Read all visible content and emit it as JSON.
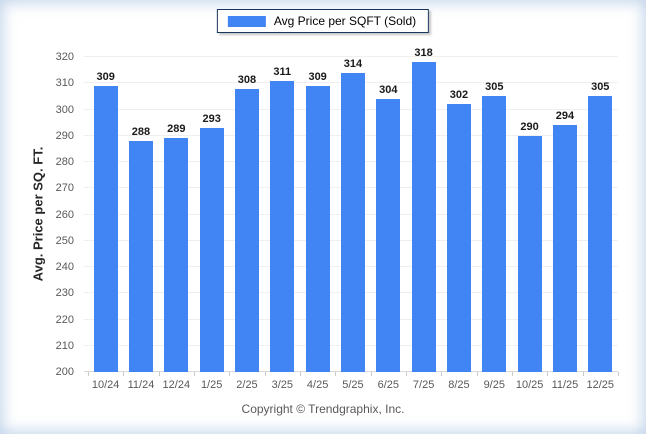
{
  "page": {
    "footer": "Copyright © Trendgraphix, Inc."
  },
  "legend": {
    "label": "Avg Price per SQFT (Sold)",
    "swatch_color": "#4184f3"
  },
  "chart_data": {
    "type": "bar",
    "title": "",
    "series_name": "Avg Price per SQFT (Sold)",
    "categories": [
      "10/24",
      "11/24",
      "12/24",
      "1/25",
      "2/25",
      "3/25",
      "4/25",
      "5/25",
      "6/25",
      "7/25",
      "8/25",
      "9/25",
      "10/25",
      "11/25",
      "12/25"
    ],
    "values": [
      309,
      288,
      289,
      293,
      308,
      311,
      309,
      314,
      304,
      318,
      302,
      305,
      290,
      294,
      305
    ],
    "xlabel": "",
    "ylabel": "Avg. Price per SQ. FT.",
    "ylim": [
      200,
      320
    ],
    "ytick_step": 10,
    "grid": true,
    "legend_position": "top-center",
    "bar_color": "#4184f3"
  }
}
